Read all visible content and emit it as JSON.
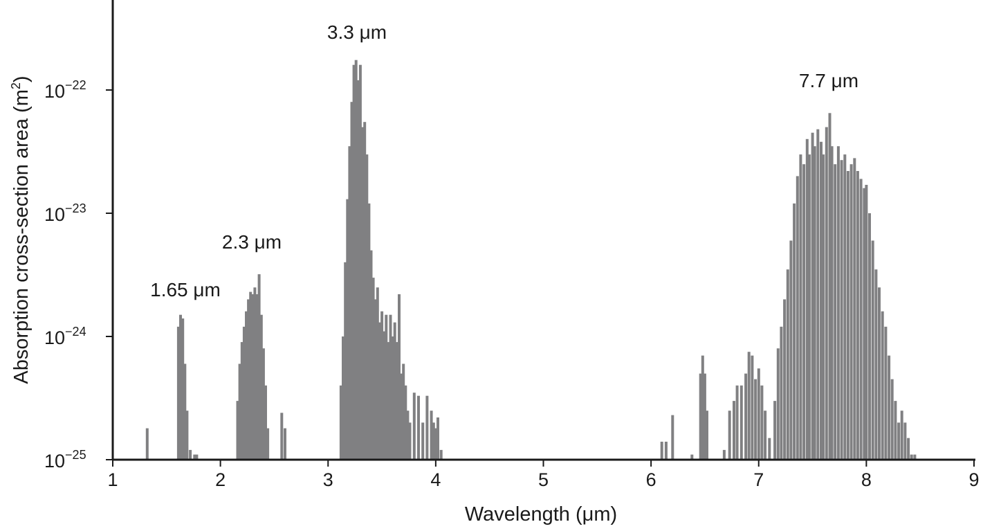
{
  "chart_data": {
    "type": "bar",
    "title": "",
    "xlabel": "Wavelength (μm)",
    "ylabel": "Absorption cross-section area (m",
    "ylabel_sup": "2",
    "ylabel_close": ")",
    "xlim": [
      1,
      9
    ],
    "ylim": [
      1e-25,
      5e-22
    ],
    "yscale": "log",
    "grid": false,
    "x_ticks": [
      1,
      2,
      3,
      4,
      5,
      6,
      7,
      8,
      9
    ],
    "y_ticks": [
      {
        "base": "10",
        "exp": "−25",
        "value": 1e-25
      },
      {
        "base": "10",
        "exp": "−24",
        "value": 1e-24
      },
      {
        "base": "10",
        "exp": "−23",
        "value": 1e-23
      },
      {
        "base": "10",
        "exp": "−22",
        "value": 1e-22
      }
    ],
    "annotations": [
      {
        "text": "1.65 μm",
        "x": 1.65,
        "y": 1.5e-24
      },
      {
        "text": "2.3 μm",
        "x": 2.3,
        "y": 3.3e-24
      },
      {
        "text": "3.3 μm",
        "x": 3.3,
        "y": 1.7e-22
      },
      {
        "text": "7.7 μm",
        "x": 7.7,
        "y": 6.5e-23
      }
    ],
    "bar_color": "#808082",
    "series": [
      {
        "values": [
          [
            1.32,
            1.8e-25
          ],
          [
            1.61,
            1.2e-24
          ],
          [
            1.63,
            1.5e-24
          ],
          [
            1.65,
            1.4e-24
          ],
          [
            1.67,
            6e-25
          ],
          [
            1.69,
            2.5e-25
          ],
          [
            1.72,
            1.2e-25
          ],
          [
            1.76,
            1.1e-25
          ],
          [
            1.78,
            1.1e-25
          ],
          [
            2.16,
            3e-25
          ],
          [
            2.18,
            6e-25
          ],
          [
            2.2,
            9e-25
          ],
          [
            2.22,
            1.2e-24
          ],
          [
            2.24,
            1.6e-24
          ],
          [
            2.26,
            2e-24
          ],
          [
            2.28,
            2.3e-24
          ],
          [
            2.3,
            2.2e-24
          ],
          [
            2.32,
            2.5e-24
          ],
          [
            2.34,
            2.2e-24
          ],
          [
            2.36,
            3.2e-24
          ],
          [
            2.38,
            1.5e-24
          ],
          [
            2.4,
            8e-25
          ],
          [
            2.42,
            4e-25
          ],
          [
            2.44,
            1.8e-25
          ],
          [
            2.57,
            2.4e-25
          ],
          [
            2.6,
            1.8e-25
          ],
          [
            3.12,
            4e-25
          ],
          [
            3.14,
            1e-24
          ],
          [
            3.16,
            4e-24
          ],
          [
            3.18,
            1.3e-23
          ],
          [
            3.2,
            3.5e-23
          ],
          [
            3.22,
            8e-23
          ],
          [
            3.24,
            1.6e-22
          ],
          [
            3.26,
            1.75e-22
          ],
          [
            3.28,
            1.2e-22
          ],
          [
            3.3,
            1.6e-22
          ],
          [
            3.32,
            5e-23
          ],
          [
            3.34,
            5.5e-23
          ],
          [
            3.36,
            3e-23
          ],
          [
            3.38,
            1.2e-23
          ],
          [
            3.4,
            5e-24
          ],
          [
            3.42,
            3e-24
          ],
          [
            3.44,
            2e-24
          ],
          [
            3.46,
            2.5e-24
          ],
          [
            3.48,
            1.3e-24
          ],
          [
            3.5,
            1.6e-24
          ],
          [
            3.52,
            1.1e-24
          ],
          [
            3.54,
            1.5e-24
          ],
          [
            3.56,
            9e-25
          ],
          [
            3.58,
            1.5e-24
          ],
          [
            3.6,
            1e-24
          ],
          [
            3.62,
            1.3e-24
          ],
          [
            3.64,
            9e-25
          ],
          [
            3.66,
            2.2e-24
          ],
          [
            3.68,
            5e-25
          ],
          [
            3.7,
            6e-25
          ],
          [
            3.72,
            4e-25
          ],
          [
            3.74,
            2.5e-25
          ],
          [
            3.76,
            2e-25
          ],
          [
            3.8,
            3.5e-25
          ],
          [
            3.84,
            3.3e-25
          ],
          [
            3.88,
            2e-25
          ],
          [
            3.92,
            3.3e-25
          ],
          [
            3.96,
            2.5e-25
          ],
          [
            3.98,
            2e-25
          ],
          [
            4.0,
            1.8e-25
          ],
          [
            4.02,
            2.2e-25
          ],
          [
            4.05,
            1.2e-25
          ],
          [
            6.1,
            1.4e-25
          ],
          [
            6.14,
            1.4e-25
          ],
          [
            6.2,
            2.3e-25
          ],
          [
            6.38,
            1.1e-25
          ],
          [
            6.46,
            5e-25
          ],
          [
            6.48,
            7e-25
          ],
          [
            6.5,
            5e-25
          ],
          [
            6.52,
            2.5e-25
          ],
          [
            6.68,
            1.2e-25
          ],
          [
            6.73,
            2.5e-25
          ],
          [
            6.77,
            3e-25
          ],
          [
            6.8,
            4e-25
          ],
          [
            6.84,
            4e-25
          ],
          [
            6.88,
            5e-25
          ],
          [
            6.91,
            7.5e-25
          ],
          [
            6.94,
            7e-25
          ],
          [
            6.97,
            4.5e-25
          ],
          [
            7.0,
            5.5e-25
          ],
          [
            7.03,
            4e-25
          ],
          [
            7.06,
            2.5e-25
          ],
          [
            7.1,
            1.5e-25
          ],
          [
            7.15,
            3e-25
          ],
          [
            7.18,
            8e-25
          ],
          [
            7.21,
            1.2e-24
          ],
          [
            7.24,
            2e-24
          ],
          [
            7.27,
            3.5e-24
          ],
          [
            7.3,
            6e-24
          ],
          [
            7.33,
            1.2e-23
          ],
          [
            7.36,
            2e-23
          ],
          [
            7.39,
            3e-23
          ],
          [
            7.42,
            2.5e-23
          ],
          [
            7.45,
            4e-23
          ],
          [
            7.47,
            3e-23
          ],
          [
            7.5,
            4.5e-23
          ],
          [
            7.52,
            3.5e-23
          ],
          [
            7.55,
            4.8e-23
          ],
          [
            7.58,
            3.8e-23
          ],
          [
            7.6,
            3e-23
          ],
          [
            7.63,
            5e-23
          ],
          [
            7.66,
            6.5e-23
          ],
          [
            7.68,
            3.5e-23
          ],
          [
            7.71,
            2.5e-23
          ],
          [
            7.74,
            3.5e-23
          ],
          [
            7.77,
            2.7e-23
          ],
          [
            7.8,
            3e-23
          ],
          [
            7.83,
            2.2e-23
          ],
          [
            7.86,
            2.5e-23
          ],
          [
            7.89,
            2.8e-23
          ],
          [
            7.92,
            2.2e-23
          ],
          [
            7.95,
            1.9e-23
          ],
          [
            7.98,
            1.6e-23
          ],
          [
            8.0,
            1.7e-23
          ],
          [
            8.03,
            1e-23
          ],
          [
            8.06,
            6e-24
          ],
          [
            8.09,
            3.5e-24
          ],
          [
            8.12,
            2.5e-24
          ],
          [
            8.15,
            1.6e-24
          ],
          [
            8.18,
            1.2e-24
          ],
          [
            8.21,
            7e-25
          ],
          [
            8.24,
            4.5e-25
          ],
          [
            8.27,
            3e-25
          ],
          [
            8.3,
            2e-25
          ],
          [
            8.33,
            2.5e-25
          ],
          [
            8.36,
            2e-25
          ],
          [
            8.39,
            1.5e-25
          ],
          [
            8.42,
            1.1e-25
          ],
          [
            8.45,
            1.1e-25
          ]
        ]
      }
    ]
  }
}
